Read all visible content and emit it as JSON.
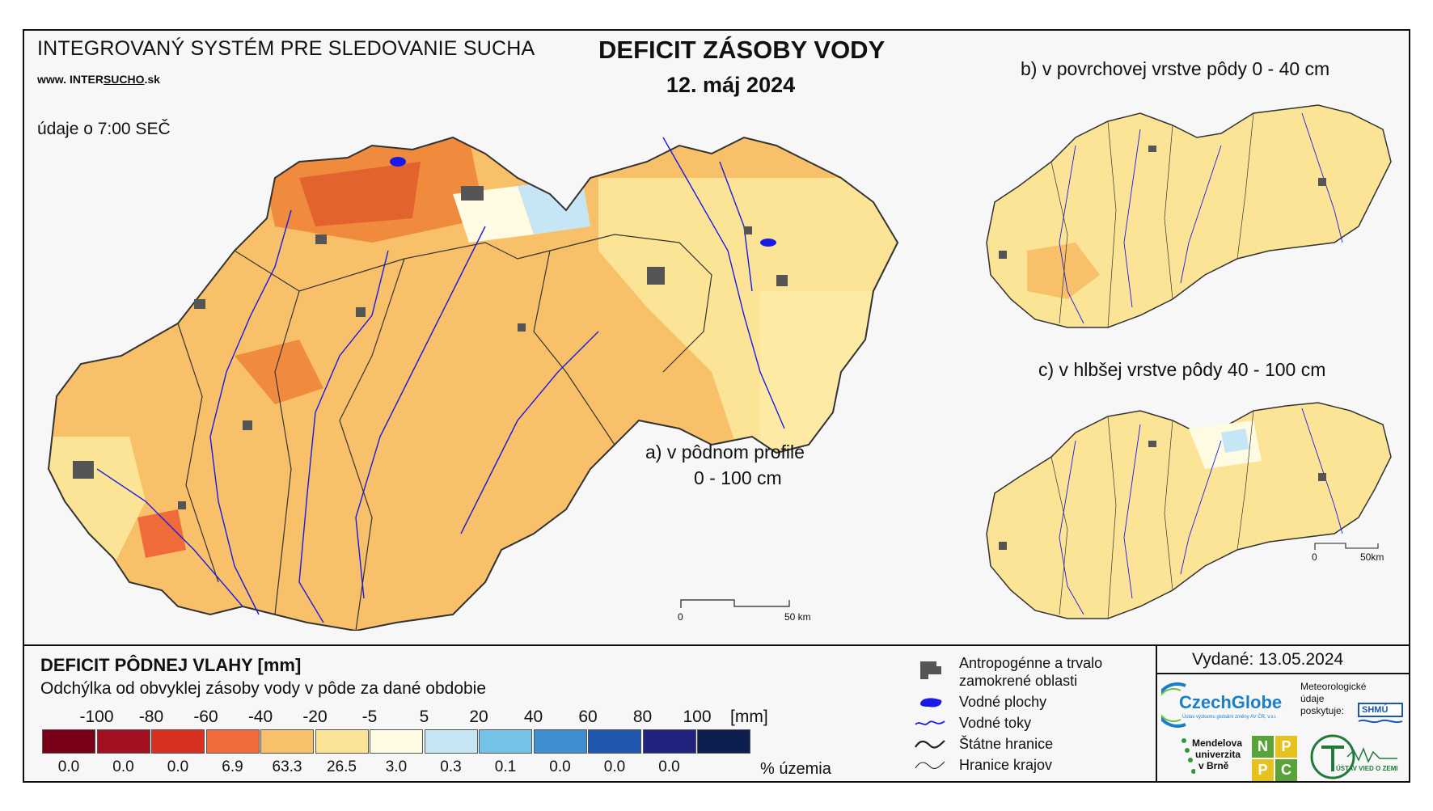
{
  "header": {
    "system_title": "INTEGROVANÝ SYSTÉM PRE SLEDOVANIE SUCHA",
    "url_prefix": "www.",
    "url_part1": "INTER",
    "url_part2": "SUCHO",
    "url_suffix": ".sk",
    "data_time": "údaje o 7:00 SEČ",
    "main_title": "DEFICIT ZÁSOBY VODY",
    "date": "12. máj 2024"
  },
  "maps": {
    "a_label_line1": "a) v pôdnom profile",
    "a_label_line2": "0 - 100 cm",
    "b_label": "b) v povrchovej vrstve pôdy 0 - 40 cm",
    "c_label": "c) v hlbšej vrstve pôdy 40 - 100 cm",
    "scale_main_0": "0",
    "scale_main_50": "50 km",
    "scale_small_0": "0",
    "scale_small_50": "50km",
    "colors": {
      "dominant": "#f9c06a",
      "light": "#fbe495",
      "dark": "#f08a3c",
      "red": "#e0592b",
      "river": "#1a1ae6",
      "urban": "#555555",
      "border": "#333333"
    }
  },
  "legend": {
    "title": "DEFICIT PÔDNEJ VLAHY [mm]",
    "subtitle": "Odchýlka od obvyklej zásoby vody v pôde za dané obdobie",
    "unit_mm": "[mm]",
    "unit_pct": "% územia",
    "scale_labels": [
      "-100",
      "-80",
      "-60",
      "-40",
      "-20",
      "-5",
      "5",
      "20",
      "40",
      "60",
      "80",
      "100"
    ],
    "classes": [
      {
        "color": "#7a0019",
        "pct": "0.0"
      },
      {
        "color": "#a50f22",
        "pct": "0.0"
      },
      {
        "color": "#d7301f",
        "pct": "0.0"
      },
      {
        "color": "#f06b3a",
        "pct": "6.9"
      },
      {
        "color": "#f9c06a",
        "pct": "63.3"
      },
      {
        "color": "#fbe495",
        "pct": "26.5"
      },
      {
        "color": "#fffbe3",
        "pct": "3.0"
      },
      {
        "color": "#c6e6f5",
        "pct": "0.3"
      },
      {
        "color": "#74c2e5",
        "pct": "0.1"
      },
      {
        "color": "#3f8fd0",
        "pct": "0.0"
      },
      {
        "color": "#1e56b0",
        "pct": "0.0"
      },
      {
        "color": "#21237e",
        "pct": "0.0"
      },
      {
        "color": "#0d1f4f",
        "pct": ""
      }
    ]
  },
  "map_legend": {
    "urban_line1": "Antropogénne a trvalo",
    "urban_line2": "zamokrené oblasti",
    "water": "Vodné plochy",
    "rivers": "Vodné toky",
    "state_border": "Štátne hranice",
    "region_border": "Hranice krajov"
  },
  "issued": "Vydané: 13.05.2024",
  "logos": {
    "czechglobe": "CzechGlobe",
    "czechglobe_sub": "Ústav výzkumu globální změny AV ČR, v.v.i.",
    "meteo_line1": "Meteorologické",
    "meteo_line2": "údaje",
    "meteo_line3": "poskytuje:",
    "shmu": "SHMÚ",
    "mendel_line1": "Mendelova",
    "mendel_line2": "univerzita",
    "mendel_line3": "v Brně",
    "nppc_letters": [
      "N",
      "P",
      "P",
      "C"
    ],
    "uvz": "ÚSTAV VIED O ZEMI"
  }
}
